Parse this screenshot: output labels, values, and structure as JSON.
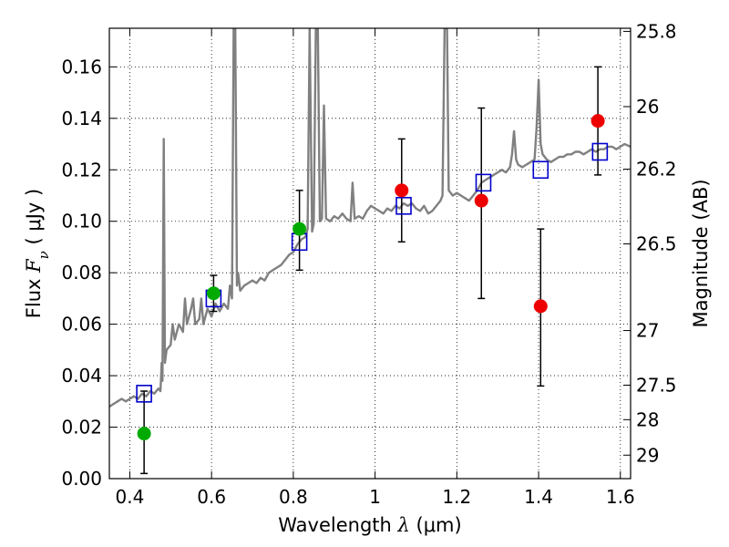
{
  "chart_data": {
    "type": "scatter",
    "xlabel": {
      "prefix": "Wavelength  ",
      "symbol": "λ",
      "unit": " (μm)"
    },
    "ylabel": {
      "prefix": "Flux  ",
      "symbol": "F",
      "subscript": "ν",
      "unit": "  ( μJy )"
    },
    "y2label": "Magnitude (AB)",
    "xlim": [
      0.35,
      1.625
    ],
    "ylim": [
      0.0,
      0.175
    ],
    "grid": true,
    "x_ticks": [
      {
        "value": 0.4,
        "label": "0.4"
      },
      {
        "value": 0.6,
        "label": "0.6"
      },
      {
        "value": 0.8,
        "label": "0.8"
      },
      {
        "value": 1.0,
        "label": "1"
      },
      {
        "value": 1.2,
        "label": "1.2"
      },
      {
        "value": 1.4,
        "label": "1.4"
      },
      {
        "value": 1.6,
        "label": "1.6"
      }
    ],
    "y_ticks": [
      {
        "value": 0.0,
        "label": "0.00"
      },
      {
        "value": 0.02,
        "label": "0.02"
      },
      {
        "value": 0.04,
        "label": "0.04"
      },
      {
        "value": 0.06,
        "label": "0.06"
      },
      {
        "value": 0.08,
        "label": "0.08"
      },
      {
        "value": 0.1,
        "label": "0.10"
      },
      {
        "value": 0.12,
        "label": "0.12"
      },
      {
        "value": 0.14,
        "label": "0.14"
      },
      {
        "value": 0.16,
        "label": "0.16"
      }
    ],
    "y2_ticks": [
      {
        "mag": 25.8,
        "label": "25.8"
      },
      {
        "mag": 26.0,
        "label": "26"
      },
      {
        "mag": 26.2,
        "label": "26.2"
      },
      {
        "mag": 26.5,
        "label": "26.5"
      },
      {
        "mag": 27.0,
        "label": "27"
      },
      {
        "mag": 27.5,
        "label": "27.5"
      },
      {
        "mag": 28.0,
        "label": "28"
      },
      {
        "mag": 29.0,
        "label": "29"
      }
    ],
    "spectrum": {
      "color": "#808080",
      "points": [
        [
          0.35,
          0.028
        ],
        [
          0.36,
          0.029
        ],
        [
          0.37,
          0.03
        ],
        [
          0.38,
          0.031
        ],
        [
          0.39,
          0.03
        ],
        [
          0.4,
          0.031
        ],
        [
          0.41,
          0.032
        ],
        [
          0.42,
          0.031
        ],
        [
          0.43,
          0.033
        ],
        [
          0.44,
          0.032
        ],
        [
          0.45,
          0.034
        ],
        [
          0.46,
          0.033
        ],
        [
          0.47,
          0.035
        ],
        [
          0.475,
          0.034
        ],
        [
          0.478,
          0.045
        ],
        [
          0.48,
          0.038
        ],
        [
          0.483,
          0.132
        ],
        [
          0.486,
          0.045
        ],
        [
          0.49,
          0.05
        ],
        [
          0.5,
          0.052
        ],
        [
          0.505,
          0.06
        ],
        [
          0.51,
          0.054
        ],
        [
          0.52,
          0.06
        ],
        [
          0.53,
          0.057
        ],
        [
          0.535,
          0.07
        ],
        [
          0.54,
          0.06
        ],
        [
          0.55,
          0.066
        ],
        [
          0.555,
          0.07
        ],
        [
          0.56,
          0.06
        ],
        [
          0.57,
          0.062
        ],
        [
          0.575,
          0.07
        ],
        [
          0.58,
          0.06
        ],
        [
          0.59,
          0.066
        ],
        [
          0.6,
          0.063
        ],
        [
          0.61,
          0.068
        ],
        [
          0.62,
          0.065
        ],
        [
          0.63,
          0.068
        ],
        [
          0.64,
          0.066
        ],
        [
          0.645,
          0.075
        ],
        [
          0.65,
          0.07
        ],
        [
          0.654,
          0.175
        ],
        [
          0.658,
          0.175
        ],
        [
          0.662,
          0.075
        ],
        [
          0.665,
          0.08
        ],
        [
          0.67,
          0.073
        ],
        [
          0.68,
          0.075
        ],
        [
          0.69,
          0.076
        ],
        [
          0.7,
          0.077
        ],
        [
          0.71,
          0.076
        ],
        [
          0.72,
          0.078
        ],
        [
          0.73,
          0.077
        ],
        [
          0.74,
          0.08
        ],
        [
          0.75,
          0.081
        ],
        [
          0.76,
          0.082
        ],
        [
          0.77,
          0.083
        ],
        [
          0.78,
          0.085
        ],
        [
          0.79,
          0.087
        ],
        [
          0.8,
          0.088
        ],
        [
          0.81,
          0.091
        ],
        [
          0.82,
          0.093
        ],
        [
          0.83,
          0.094
        ],
        [
          0.835,
          0.097
        ],
        [
          0.84,
          0.175
        ],
        [
          0.846,
          0.096
        ],
        [
          0.85,
          0.099
        ],
        [
          0.855,
          0.175
        ],
        [
          0.86,
          0.175
        ],
        [
          0.865,
          0.1
        ],
        [
          0.87,
          0.101
        ],
        [
          0.875,
          0.145
        ],
        [
          0.88,
          0.101
        ],
        [
          0.89,
          0.1
        ],
        [
          0.9,
          0.102
        ],
        [
          0.91,
          0.101
        ],
        [
          0.92,
          0.103
        ],
        [
          0.93,
          0.101
        ],
        [
          0.94,
          0.1
        ],
        [
          0.945,
          0.115
        ],
        [
          0.95,
          0.101
        ],
        [
          0.96,
          0.102
        ],
        [
          0.97,
          0.101
        ],
        [
          0.98,
          0.104
        ],
        [
          0.99,
          0.106
        ],
        [
          1.0,
          0.105
        ],
        [
          1.01,
          0.104
        ],
        [
          1.02,
          0.103
        ],
        [
          1.03,
          0.105
        ],
        [
          1.04,
          0.104
        ],
        [
          1.05,
          0.106
        ],
        [
          1.06,
          0.105
        ],
        [
          1.07,
          0.107
        ],
        [
          1.08,
          0.106
        ],
        [
          1.09,
          0.107
        ],
        [
          1.1,
          0.105
        ],
        [
          1.11,
          0.104
        ],
        [
          1.12,
          0.106
        ],
        [
          1.13,
          0.103
        ],
        [
          1.14,
          0.104
        ],
        [
          1.15,
          0.106
        ],
        [
          1.16,
          0.108
        ],
        [
          1.165,
          0.11
        ],
        [
          1.17,
          0.175
        ],
        [
          1.176,
          0.175
        ],
        [
          1.18,
          0.112
        ],
        [
          1.19,
          0.11
        ],
        [
          1.2,
          0.111
        ],
        [
          1.21,
          0.11
        ],
        [
          1.22,
          0.109
        ],
        [
          1.23,
          0.108
        ],
        [
          1.24,
          0.11
        ],
        [
          1.25,
          0.112
        ],
        [
          1.26,
          0.115
        ],
        [
          1.27,
          0.116
        ],
        [
          1.28,
          0.117
        ],
        [
          1.29,
          0.118
        ],
        [
          1.3,
          0.119
        ],
        [
          1.31,
          0.12
        ],
        [
          1.32,
          0.119
        ],
        [
          1.33,
          0.121
        ],
        [
          1.335,
          0.126
        ],
        [
          1.34,
          0.135
        ],
        [
          1.345,
          0.124
        ],
        [
          1.35,
          0.122
        ],
        [
          1.36,
          0.121
        ],
        [
          1.37,
          0.122
        ],
        [
          1.38,
          0.123
        ],
        [
          1.39,
          0.124
        ],
        [
          1.395,
          0.136
        ],
        [
          1.4,
          0.155
        ],
        [
          1.405,
          0.13
        ],
        [
          1.41,
          0.126
        ],
        [
          1.42,
          0.124
        ],
        [
          1.43,
          0.123
        ],
        [
          1.44,
          0.124
        ],
        [
          1.45,
          0.125
        ],
        [
          1.46,
          0.125
        ],
        [
          1.47,
          0.126
        ],
        [
          1.48,
          0.126
        ],
        [
          1.49,
          0.127
        ],
        [
          1.5,
          0.127
        ],
        [
          1.51,
          0.126
        ],
        [
          1.52,
          0.127
        ],
        [
          1.53,
          0.128
        ],
        [
          1.54,
          0.127
        ],
        [
          1.55,
          0.128
        ],
        [
          1.56,
          0.128
        ],
        [
          1.57,
          0.129
        ],
        [
          1.58,
          0.129
        ],
        [
          1.59,
          0.128
        ],
        [
          1.6,
          0.129
        ],
        [
          1.61,
          0.13
        ],
        [
          1.625,
          0.129
        ]
      ]
    },
    "model_points": {
      "color": "#0000cc",
      "values": [
        [
          0.435,
          0.033
        ],
        [
          0.605,
          0.07
        ],
        [
          0.815,
          0.092
        ],
        [
          1.07,
          0.106
        ],
        [
          1.265,
          0.115
        ],
        [
          1.405,
          0.12
        ],
        [
          1.55,
          0.127
        ]
      ]
    },
    "ground_points": {
      "color": "#00aa00",
      "values": [
        [
          0.435,
          0.0175
        ],
        [
          0.605,
          0.072
        ],
        [
          0.815,
          0.097
        ]
      ]
    },
    "space_points": {
      "color": "#ee0000",
      "values": [
        [
          1.065,
          0.112
        ],
        [
          1.26,
          0.108
        ],
        [
          1.405,
          0.067
        ],
        [
          1.545,
          0.139
        ]
      ]
    },
    "error_bars": [
      {
        "x": 0.435,
        "low": 0.002,
        "high": 0.034
      },
      {
        "x": 0.605,
        "low": 0.065,
        "high": 0.079
      },
      {
        "x": 0.815,
        "low": 0.081,
        "high": 0.112
      },
      {
        "x": 1.065,
        "low": 0.092,
        "high": 0.132
      },
      {
        "x": 1.26,
        "low": 0.07,
        "high": 0.144
      },
      {
        "x": 1.405,
        "low": 0.036,
        "high": 0.097
      },
      {
        "x": 1.545,
        "low": 0.118,
        "high": 0.16
      }
    ]
  }
}
